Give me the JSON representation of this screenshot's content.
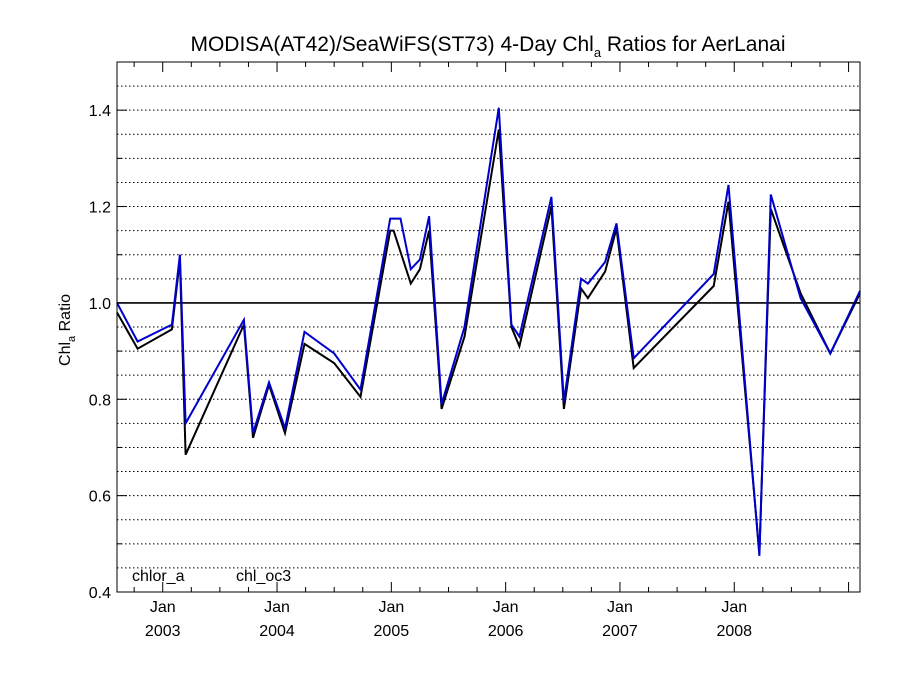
{
  "chart_data": {
    "type": "line",
    "title_main": "MODISA(AT42)/SeaWiFS(ST73) 4-Day Chl",
    "title_sub": "a",
    "title_rest": " Ratios for AerLanai",
    "ylabel_main": "Chl",
    "ylabel_sub": "a",
    "ylabel_rest": " Ratio",
    "ylim": [
      0.4,
      1.5
    ],
    "xlim": [
      2002.6,
      2009.1
    ],
    "y_ticks": [
      {
        "value": 0.4,
        "label": "0.4"
      },
      {
        "value": 0.6,
        "label": "0.6"
      },
      {
        "value": 0.8,
        "label": "0.8"
      },
      {
        "value": 1.0,
        "label": "1.0"
      },
      {
        "value": 1.2,
        "label": "1.2"
      },
      {
        "value": 1.4,
        "label": "1.4"
      }
    ],
    "x_ticks": [
      {
        "value": 2003.0,
        "month": "Jan",
        "year": "2003"
      },
      {
        "value": 2004.0,
        "month": "Jan",
        "year": "2004"
      },
      {
        "value": 2005.0,
        "month": "Jan",
        "year": "2005"
      },
      {
        "value": 2006.0,
        "month": "Jan",
        "year": "2006"
      },
      {
        "value": 2007.0,
        "month": "Jan",
        "year": "2007"
      },
      {
        "value": 2008.0,
        "month": "Jan",
        "year": "2008"
      }
    ],
    "reference_line": 1.0,
    "grid": "horizontal dotted",
    "legend_position": "bottom-left",
    "series": [
      {
        "name": "chlor_a",
        "color": "#000000",
        "x": [
          2002.6,
          2002.78,
          2003.08,
          2003.15,
          2003.2,
          2003.71,
          2003.79,
          2003.93,
          2004.07,
          2004.24,
          2004.5,
          2004.73,
          2004.99,
          2005.02,
          2005.17,
          2005.25,
          2005.33,
          2005.44,
          2005.64,
          2005.94,
          2006.05,
          2006.12,
          2006.4,
          2006.51,
          2006.66,
          2006.72,
          2006.87,
          2006.97,
          2007.12,
          2007.82,
          2007.95,
          2008.22,
          2008.32,
          2008.58,
          2008.84,
          2009.1
        ],
        "y": [
          0.98,
          0.905,
          0.945,
          1.09,
          0.685,
          0.955,
          0.72,
          0.83,
          0.73,
          0.915,
          0.875,
          0.805,
          1.15,
          1.15,
          1.04,
          1.07,
          1.15,
          0.78,
          0.93,
          1.36,
          0.95,
          0.91,
          1.2,
          0.78,
          1.03,
          1.01,
          1.065,
          1.155,
          0.865,
          1.035,
          1.21,
          0.48,
          1.195,
          1.02,
          0.895,
          1.02
        ]
      },
      {
        "name": "chl_oc3",
        "color": "#0000cc",
        "x": [
          2002.6,
          2002.78,
          2003.08,
          2003.15,
          2003.2,
          2003.71,
          2003.79,
          2003.93,
          2004.07,
          2004.24,
          2004.5,
          2004.73,
          2004.99,
          2005.02,
          2005.08,
          2005.17,
          2005.25,
          2005.33,
          2005.44,
          2005.64,
          2005.94,
          2006.05,
          2006.12,
          2006.4,
          2006.51,
          2006.66,
          2006.72,
          2006.87,
          2006.97,
          2007.12,
          2007.82,
          2007.95,
          2008.22,
          2008.32,
          2008.58,
          2008.84,
          2009.1
        ],
        "y": [
          1.0,
          0.92,
          0.955,
          1.1,
          0.75,
          0.965,
          0.73,
          0.835,
          0.74,
          0.94,
          0.895,
          0.82,
          1.175,
          1.175,
          1.175,
          1.07,
          1.09,
          1.18,
          0.79,
          0.95,
          1.405,
          0.955,
          0.93,
          1.22,
          0.795,
          1.05,
          1.04,
          1.085,
          1.165,
          0.885,
          1.06,
          1.245,
          0.475,
          1.225,
          1.01,
          0.895,
          1.025
        ]
      }
    ]
  }
}
